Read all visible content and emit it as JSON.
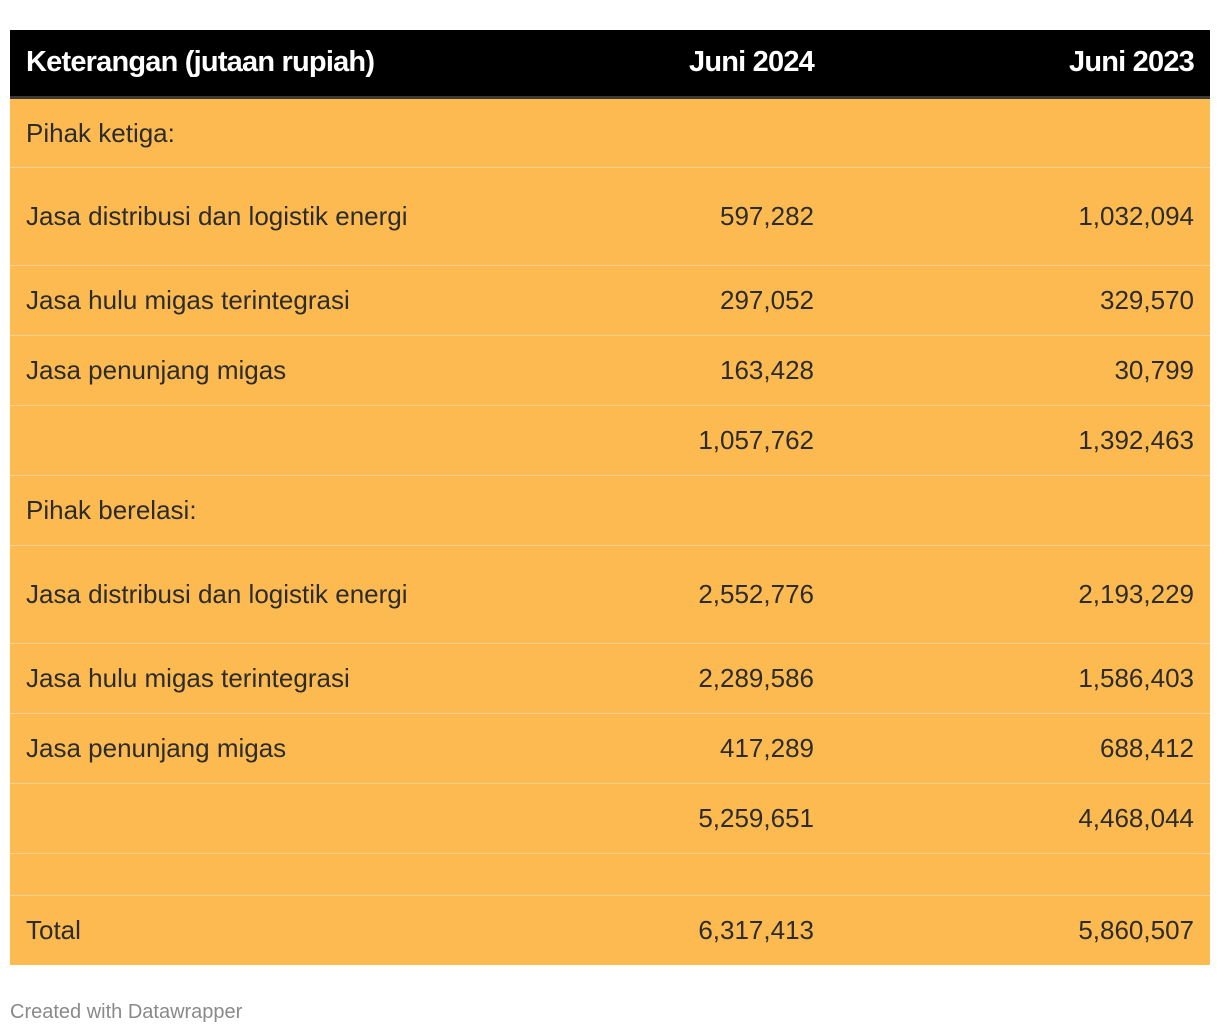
{
  "chart_data": {
    "type": "table",
    "columns": [
      "Keterangan (jutaan rupiah)",
      "Juni 2024",
      "Juni 2023"
    ],
    "rows": [
      {
        "label": "Pihak ketiga:",
        "juni_2024": "",
        "juni_2023": ""
      },
      {
        "label": "Jasa distribusi dan logistik energi",
        "juni_2024": "597,282",
        "juni_2023": "1,032,094"
      },
      {
        "label": "Jasa hulu migas terintegrasi",
        "juni_2024": "297,052",
        "juni_2023": "329,570"
      },
      {
        "label": "Jasa penunjang migas",
        "juni_2024": "163,428",
        "juni_2023": "30,799"
      },
      {
        "label": "",
        "juni_2024": "1,057,762",
        "juni_2023": "1,392,463"
      },
      {
        "label": "Pihak berelasi:",
        "juni_2024": "",
        "juni_2023": ""
      },
      {
        "label": "Jasa distribusi dan logistik energi",
        "juni_2024": "2,552,776",
        "juni_2023": "2,193,229"
      },
      {
        "label": "Jasa hulu migas terintegrasi",
        "juni_2024": "2,289,586",
        "juni_2023": "1,586,403"
      },
      {
        "label": "Jasa penunjang migas",
        "juni_2024": "417,289",
        "juni_2023": "688,412"
      },
      {
        "label": "",
        "juni_2024": "5,259,651",
        "juni_2023": "4,468,044"
      },
      {
        "label": "",
        "juni_2024": "",
        "juni_2023": ""
      },
      {
        "label": "Total",
        "juni_2024": "6,317,413",
        "juni_2023": "5,860,507"
      }
    ],
    "colors": {
      "header_background": "#000000",
      "header_text": "#ffffff",
      "body_background": "#fdba51",
      "body_text": "#2c2c2c"
    }
  },
  "footer": {
    "credit": "Created with Datawrapper"
  }
}
